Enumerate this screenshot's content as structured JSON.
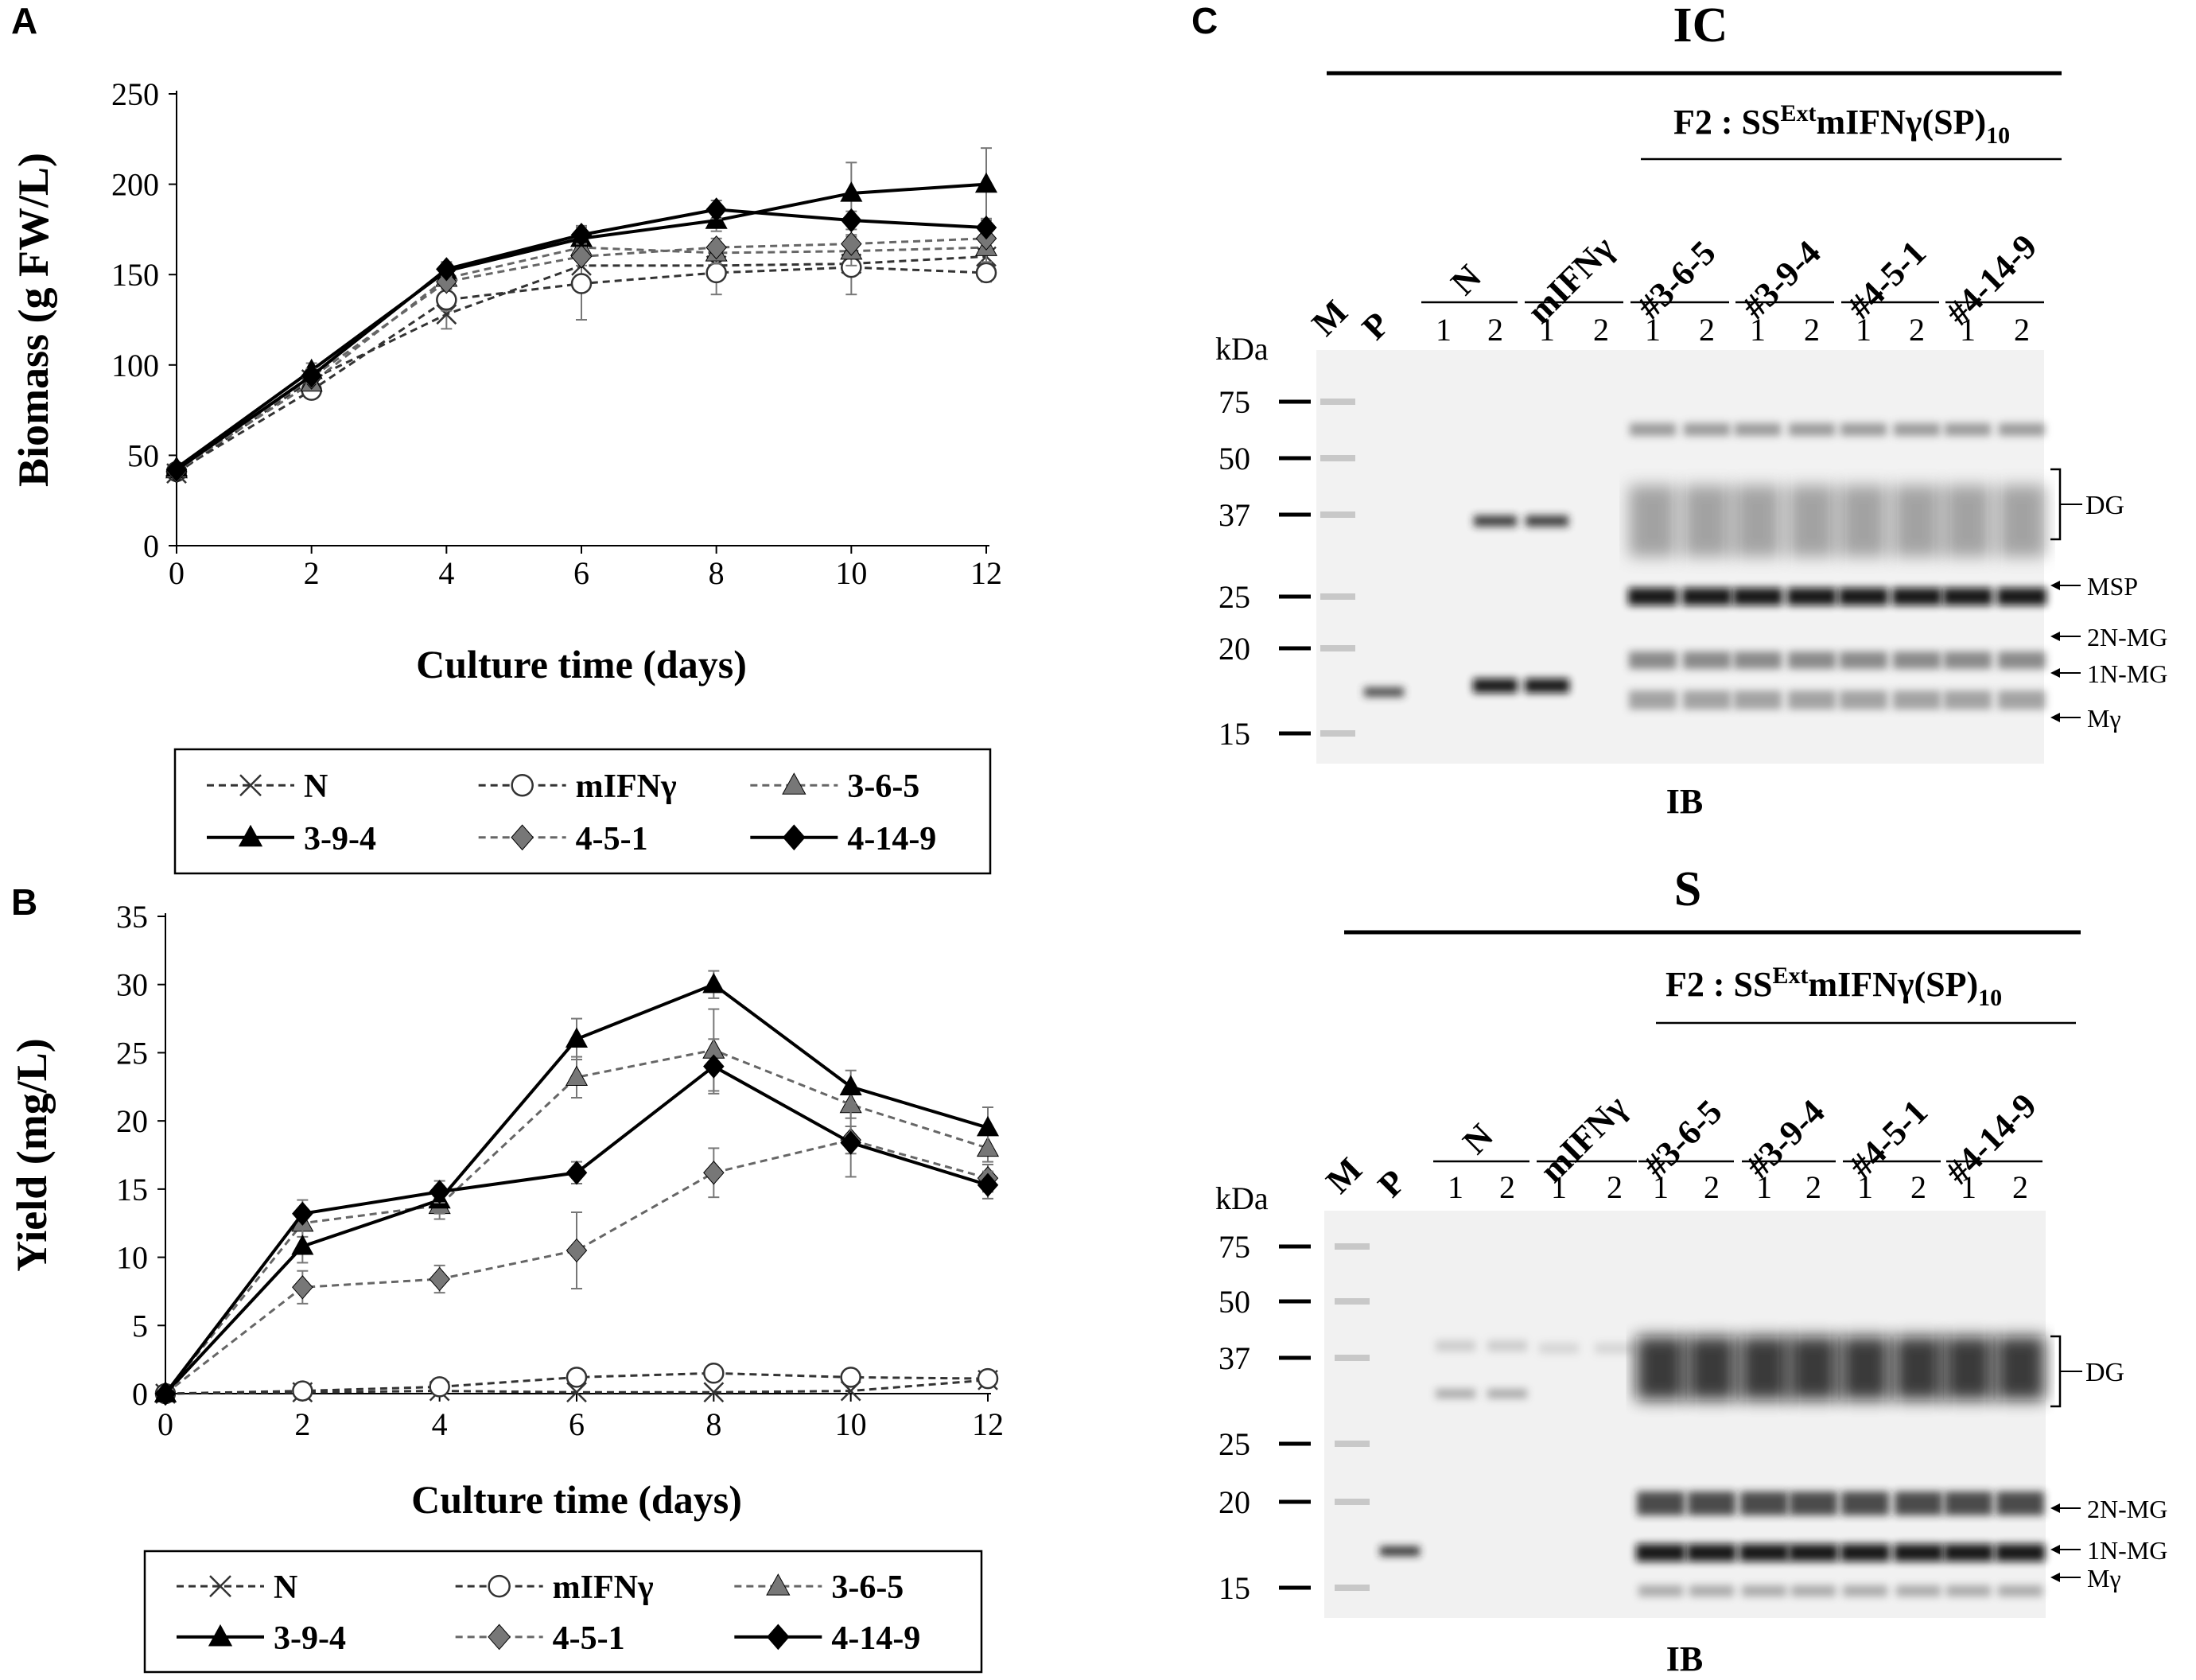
{
  "panels": {
    "a": "A",
    "b": "B",
    "c": "C"
  },
  "chart_data": [
    {
      "id": "A",
      "type": "line",
      "xlabel": "Culture time (days)",
      "ylabel": "Biomass (g FW/L)",
      "x": [
        0,
        2,
        4,
        6,
        8,
        10,
        12
      ],
      "xticks": [
        "0",
        "2",
        "4",
        "6",
        "8",
        "10",
        "12"
      ],
      "ylim": [
        0,
        250
      ],
      "yticks": [
        "0",
        "50",
        "100",
        "150",
        "200",
        "250"
      ],
      "series": [
        {
          "name": "N",
          "marker": "x",
          "dash": true,
          "color": "#333333",
          "values": [
            40,
            92,
            128,
            155,
            155,
            156,
            160
          ],
          "err": [
            0,
            4,
            8,
            6,
            5,
            6,
            5
          ]
        },
        {
          "name": "mIFNγ",
          "marker": "circle",
          "dash": true,
          "color": "#333333",
          "values": [
            41,
            86,
            136,
            145,
            151,
            154,
            151
          ],
          "err": [
            0,
            4,
            6,
            20,
            12,
            15,
            5
          ]
        },
        {
          "name": "3-6-5",
          "marker": "triangle",
          "dash": true,
          "color": "#777777",
          "values": [
            42,
            90,
            148,
            165,
            162,
            163,
            165
          ],
          "err": [
            0,
            4,
            5,
            8,
            6,
            8,
            8
          ]
        },
        {
          "name": "3-9-4",
          "marker": "triangle",
          "dash": false,
          "color": "#000000",
          "values": [
            43,
            97,
            152,
            170,
            180,
            195,
            200
          ],
          "err": [
            0,
            4,
            4,
            6,
            6,
            17,
            20
          ]
        },
        {
          "name": "4-5-1",
          "marker": "diamond",
          "dash": true,
          "color": "#777777",
          "values": [
            41,
            93,
            146,
            160,
            165,
            167,
            170
          ],
          "err": [
            0,
            4,
            4,
            5,
            5,
            5,
            5
          ]
        },
        {
          "name": "4-14-9",
          "marker": "diamond",
          "dash": false,
          "color": "#000000",
          "values": [
            42,
            94,
            153,
            172,
            186,
            180,
            176
          ],
          "err": [
            0,
            4,
            4,
            5,
            5,
            5,
            5
          ]
        }
      ]
    },
    {
      "id": "B",
      "type": "line",
      "xlabel": "Culture time (days)",
      "ylabel": "Yield (mg/L)",
      "x": [
        0,
        2,
        4,
        6,
        8,
        10,
        12
      ],
      "xticks": [
        "0",
        "2",
        "4",
        "6",
        "8",
        "10",
        "12"
      ],
      "ylim": [
        0,
        35
      ],
      "yticks": [
        "0",
        "5",
        "10",
        "15",
        "20",
        "25",
        "30",
        "35"
      ],
      "series": [
        {
          "name": "N",
          "marker": "x",
          "dash": true,
          "color": "#333333",
          "values": [
            0,
            0.1,
            0.2,
            0.1,
            0.1,
            0.2,
            1.0
          ],
          "err": [
            0,
            0,
            0,
            0,
            0,
            0,
            0
          ]
        },
        {
          "name": "mIFNγ",
          "marker": "circle",
          "dash": true,
          "color": "#333333",
          "values": [
            0,
            0.2,
            0.5,
            1.2,
            1.5,
            1.2,
            1.1
          ],
          "err": [
            0,
            0,
            0,
            0,
            0,
            0,
            0
          ]
        },
        {
          "name": "3-6-5",
          "marker": "triangle",
          "dash": true,
          "color": "#777777",
          "values": [
            0,
            12.5,
            13.8,
            23.2,
            25.2,
            21.2,
            18.0
          ],
          "err": [
            0,
            1.0,
            1.0,
            1.5,
            3.0,
            1.0,
            1.0
          ]
        },
        {
          "name": "3-9-4",
          "marker": "triangle",
          "dash": false,
          "color": "#000000",
          "values": [
            0,
            10.8,
            14.2,
            26.0,
            30.0,
            22.5,
            19.5
          ],
          "err": [
            0,
            1.2,
            1.0,
            1.5,
            1.0,
            1.2,
            1.5
          ]
        },
        {
          "name": "4-5-1",
          "marker": "diamond",
          "dash": true,
          "color": "#777777",
          "values": [
            0,
            7.8,
            8.4,
            10.5,
            16.2,
            18.6,
            15.8
          ],
          "err": [
            0,
            1.2,
            1.0,
            2.8,
            1.8,
            1.0,
            1.0
          ]
        },
        {
          "name": "4-14-9",
          "marker": "diamond",
          "dash": false,
          "color": "#000000",
          "values": [
            0,
            13.2,
            14.8,
            16.2,
            24.0,
            18.4,
            15.3
          ],
          "err": [
            0,
            1.0,
            0.8,
            0.8,
            2.0,
            2.5,
            1.0
          ]
        }
      ]
    }
  ],
  "blots": [
    {
      "id": "IC",
      "title": "IC",
      "construct_prefix": "F2 : SS",
      "construct_sup": "Ext",
      "construct_main": "mIFNγ(SP)",
      "construct_sub": "10",
      "marker_label": "M",
      "positive_label": "P",
      "groups": [
        "N",
        "mIFNγ",
        "#3-6-5",
        "#3-9-4",
        "#4-5-1",
        "#4-14-9"
      ],
      "lanes": [
        "1",
        "2"
      ],
      "kda_label": "kDa",
      "kda": [
        "75",
        "50",
        "37",
        "25",
        "20",
        "15"
      ],
      "annotations": [
        "DG",
        "MSP",
        "2N-MG",
        "1N-MG",
        "Mγ"
      ],
      "footer": "IB"
    },
    {
      "id": "S",
      "title": "S",
      "construct_prefix": "F2 : SS",
      "construct_sup": "Ext",
      "construct_main": "mIFNγ(SP)",
      "construct_sub": "10",
      "marker_label": "M",
      "positive_label": "P",
      "groups": [
        "N",
        "mIFNγ",
        "#3-6-5",
        "#3-9-4",
        "#4-5-1",
        "#4-14-9"
      ],
      "lanes": [
        "1",
        "2"
      ],
      "kda_label": "kDa",
      "kda": [
        "75",
        "50",
        "37",
        "25",
        "20",
        "15"
      ],
      "annotations": [
        "DG",
        "2N-MG",
        "1N-MG",
        "Mγ"
      ],
      "footer": "IB"
    }
  ]
}
